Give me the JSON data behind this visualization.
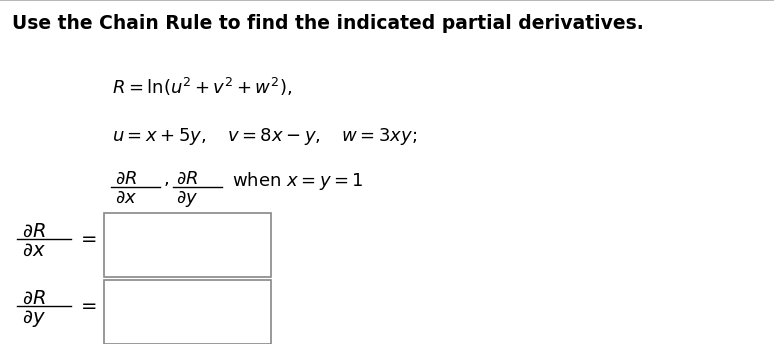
{
  "background_color": "#ffffff",
  "border_color": "#aaaaaa",
  "title_text": "Use the Chain Rule to find the indicated partial derivatives.",
  "title_fontsize": 13.5,
  "content_fontsize": 13,
  "label_fontsize": 14
}
